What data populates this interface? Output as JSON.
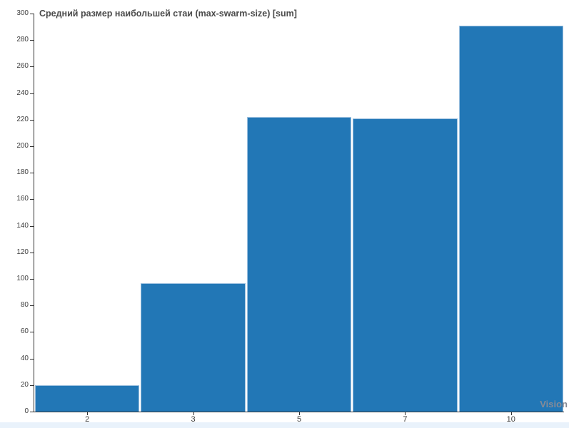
{
  "chart_data": {
    "type": "bar",
    "title": "Средний размер наибольшей стаи (max-swarm-size) [sum]",
    "xlabel": "Vision",
    "categories": [
      "2",
      "3",
      "5",
      "7",
      "10"
    ],
    "values": [
      20,
      97,
      222,
      221,
      291
    ],
    "ylim": [
      0,
      300
    ],
    "ytick_step": 20,
    "grid": false,
    "legend": "none",
    "colors": {
      "bar_fill": "#2277b6",
      "bar_edge": "#9cc0df",
      "axis": "#333333",
      "title_text": "#4a4a4a",
      "tick_text": "#3d3d3d",
      "xlabel_text": "#878b96",
      "bottom_strip": "#e9f2fb",
      "background": "#ffffff"
    }
  }
}
